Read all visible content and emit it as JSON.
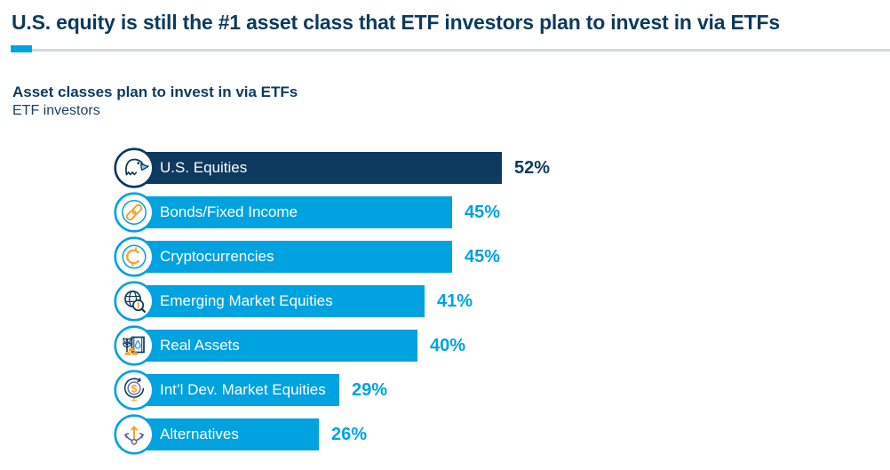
{
  "title": "U.S. equity is still the #1 asset class that ETF investors plan to invest in via ETFs",
  "subtitle": "Asset classes plan to invest in via ETFs",
  "subtitle2": "ETF investors",
  "colors": {
    "navy": "#0d3a5e",
    "light_blue": "#00a2e0",
    "orange": "#f0a42e",
    "slate_blue": "#5b6ba8",
    "rule_gray": "#d4d8dd",
    "bar_text": "#ffffff"
  },
  "chart_data": {
    "type": "bar",
    "orientation": "horizontal",
    "title": "Asset classes plan to invest in via ETFs",
    "subtitle": "ETF investors",
    "categories": [
      "U.S. Equities",
      "Bonds/Fixed Income",
      "Cryptocurrencies",
      "Emerging Market Equities",
      "Real Assets",
      "Int’l Dev. Market Equities",
      "Alternatives"
    ],
    "values": [
      52,
      45,
      45,
      41,
      40,
      29,
      26
    ],
    "value_suffix": "%",
    "xlim": [
      0,
      60
    ],
    "axis_shown": false,
    "grid": false,
    "legend": "none",
    "bars": [
      {
        "label": "U.S. Equities",
        "value": 52,
        "display": "52%",
        "icon": "eagle-icon",
        "emphasis": true
      },
      {
        "label": "Bonds/Fixed Income",
        "value": 45,
        "display": "45%",
        "icon": "chain-link-icon",
        "emphasis": false
      },
      {
        "label": "Cryptocurrencies",
        "value": 45,
        "display": "45%",
        "icon": "crypto-coin-icon",
        "emphasis": false
      },
      {
        "label": "Emerging Market Equities",
        "value": 41,
        "display": "41%",
        "icon": "globe-magnifier-icon",
        "emphasis": false
      },
      {
        "label": "Real Assets",
        "value": 40,
        "display": "40%",
        "icon": "commodities-icon",
        "emphasis": false
      },
      {
        "label": "Int’l Dev. Market Equities",
        "value": 29,
        "display": "29%",
        "icon": "globe-dollar-icon",
        "emphasis": false
      },
      {
        "label": "Alternatives",
        "value": 26,
        "display": "26%",
        "icon": "branching-arrows-icon",
        "emphasis": false
      }
    ]
  }
}
